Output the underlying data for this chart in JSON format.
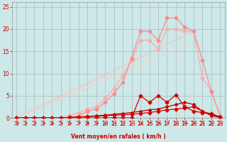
{
  "xlabel": "Vent moyen/en rafales ( km/h )",
  "xlim": [
    -0.5,
    23.5
  ],
  "ylim": [
    0,
    26
  ],
  "xticks": [
    0,
    1,
    2,
    3,
    4,
    5,
    6,
    7,
    8,
    9,
    10,
    11,
    12,
    13,
    14,
    15,
    16,
    17,
    18,
    19,
    20,
    21,
    22,
    23
  ],
  "yticks": [
    0,
    5,
    10,
    15,
    20,
    25
  ],
  "bg_color": "#cce8e8",
  "grid_color": "#aaaaaa",
  "line_rafales_theoretical": {
    "x": [
      0,
      1,
      2,
      3,
      4,
      5,
      6,
      7,
      8,
      9,
      10,
      11,
      12,
      13,
      14,
      15,
      16,
      17,
      18,
      19,
      20,
      21,
      22,
      23
    ],
    "y": [
      0,
      0,
      0,
      0,
      0,
      0,
      0,
      0,
      0,
      0,
      0,
      0,
      0,
      0,
      0,
      0,
      0,
      0,
      0,
      0,
      0,
      0,
      0,
      0
    ],
    "color": "#ffaaaa",
    "lw": 0.8
  },
  "line_moyen_theoretical": {
    "x": [
      0,
      1,
      2,
      3,
      4,
      5,
      6,
      7,
      8,
      9,
      10,
      11,
      12,
      13,
      14,
      15,
      16,
      17,
      18,
      19,
      20,
      21,
      22,
      23
    ],
    "y": [
      0,
      0,
      0,
      0,
      0,
      0,
      0,
      0,
      0,
      0,
      0,
      0,
      0,
      0,
      0,
      0,
      0,
      0,
      0,
      0,
      0,
      0,
      0,
      0
    ],
    "color": "#ffaaaa",
    "lw": 0.8
  },
  "line_salmon_peak": {
    "x": [
      0,
      1,
      2,
      3,
      4,
      5,
      6,
      7,
      8,
      9,
      10,
      11,
      12,
      13,
      14,
      15,
      16,
      17,
      18,
      19,
      20,
      21,
      22,
      23
    ],
    "y": [
      0,
      0,
      0,
      0,
      0,
      0,
      0,
      0.5,
      1.5,
      2.0,
      3.5,
      5.5,
      8.0,
      13.5,
      19.5,
      19.5,
      17.5,
      22.5,
      22.5,
      20.5,
      19.5,
      13.0,
      6.0,
      0.5
    ],
    "color": "#ff8888",
    "lw": 0.9,
    "marker": "D",
    "ms": 2.5
  },
  "line_salmon_lower": {
    "x": [
      0,
      1,
      2,
      3,
      4,
      5,
      6,
      7,
      8,
      9,
      10,
      11,
      12,
      13,
      14,
      15,
      16,
      17,
      18,
      19,
      20,
      21,
      22,
      23
    ],
    "y": [
      0,
      0,
      0,
      0,
      0,
      0,
      0.5,
      1.2,
      2.0,
      2.5,
      4.5,
      6.5,
      9.5,
      13.0,
      17.5,
      17.5,
      15.5,
      20.0,
      20.0,
      19.5,
      19.5,
      9.0,
      6.0,
      0.5
    ],
    "color": "#ffaaaa",
    "lw": 0.9,
    "marker": "D",
    "ms": 2.5
  },
  "line_linear1": {
    "x": [
      0,
      20
    ],
    "y": [
      0,
      19.5
    ],
    "color": "#ffbbbb",
    "lw": 0.8
  },
  "line_linear2": {
    "x": [
      0,
      20
    ],
    "y": [
      0,
      17.0
    ],
    "color": "#ffcccc",
    "lw": 0.8
  },
  "line_red_spiky": {
    "x": [
      0,
      1,
      2,
      3,
      4,
      5,
      6,
      7,
      8,
      9,
      10,
      11,
      12,
      13,
      14,
      15,
      16,
      17,
      18,
      19,
      20,
      21,
      22,
      23
    ],
    "y": [
      0,
      0,
      0,
      0,
      0,
      0,
      0,
      0,
      0,
      0,
      0,
      0,
      0,
      0,
      5.0,
      3.5,
      5.0,
      3.5,
      5.2,
      2.5,
      1.5,
      1.2,
      1.0,
      0.2
    ],
    "color": "#cc0000",
    "lw": 0.9,
    "marker": "D",
    "ms": 2.5
  },
  "line_red_flat1": {
    "x": [
      0,
      1,
      2,
      3,
      4,
      5,
      6,
      7,
      8,
      9,
      10,
      11,
      12,
      13,
      14,
      15,
      16,
      17,
      18,
      19,
      20,
      21,
      22,
      23
    ],
    "y": [
      0,
      0,
      0,
      0,
      0,
      0,
      0.1,
      0.2,
      0.3,
      0.4,
      0.5,
      0.6,
      0.7,
      0.8,
      1.0,
      1.2,
      1.5,
      1.8,
      2.0,
      2.2,
      2.5,
      1.5,
      0.8,
      0.2
    ],
    "color": "#dd0000",
    "lw": 0.9,
    "marker": "D",
    "ms": 2.5
  },
  "line_red_flat2": {
    "x": [
      0,
      1,
      2,
      3,
      4,
      5,
      6,
      7,
      8,
      9,
      10,
      11,
      12,
      13,
      14,
      15,
      16,
      17,
      18,
      19,
      20,
      21,
      22,
      23
    ],
    "y": [
      0,
      0,
      0,
      0,
      0,
      0,
      0.1,
      0.2,
      0.3,
      0.5,
      0.6,
      0.8,
      1.0,
      1.2,
      1.5,
      1.8,
      2.0,
      2.5,
      3.0,
      3.5,
      3.0,
      1.5,
      0.5,
      0.1
    ],
    "color": "#bb0000",
    "lw": 0.9,
    "marker": "D",
    "ms": 2.0
  }
}
